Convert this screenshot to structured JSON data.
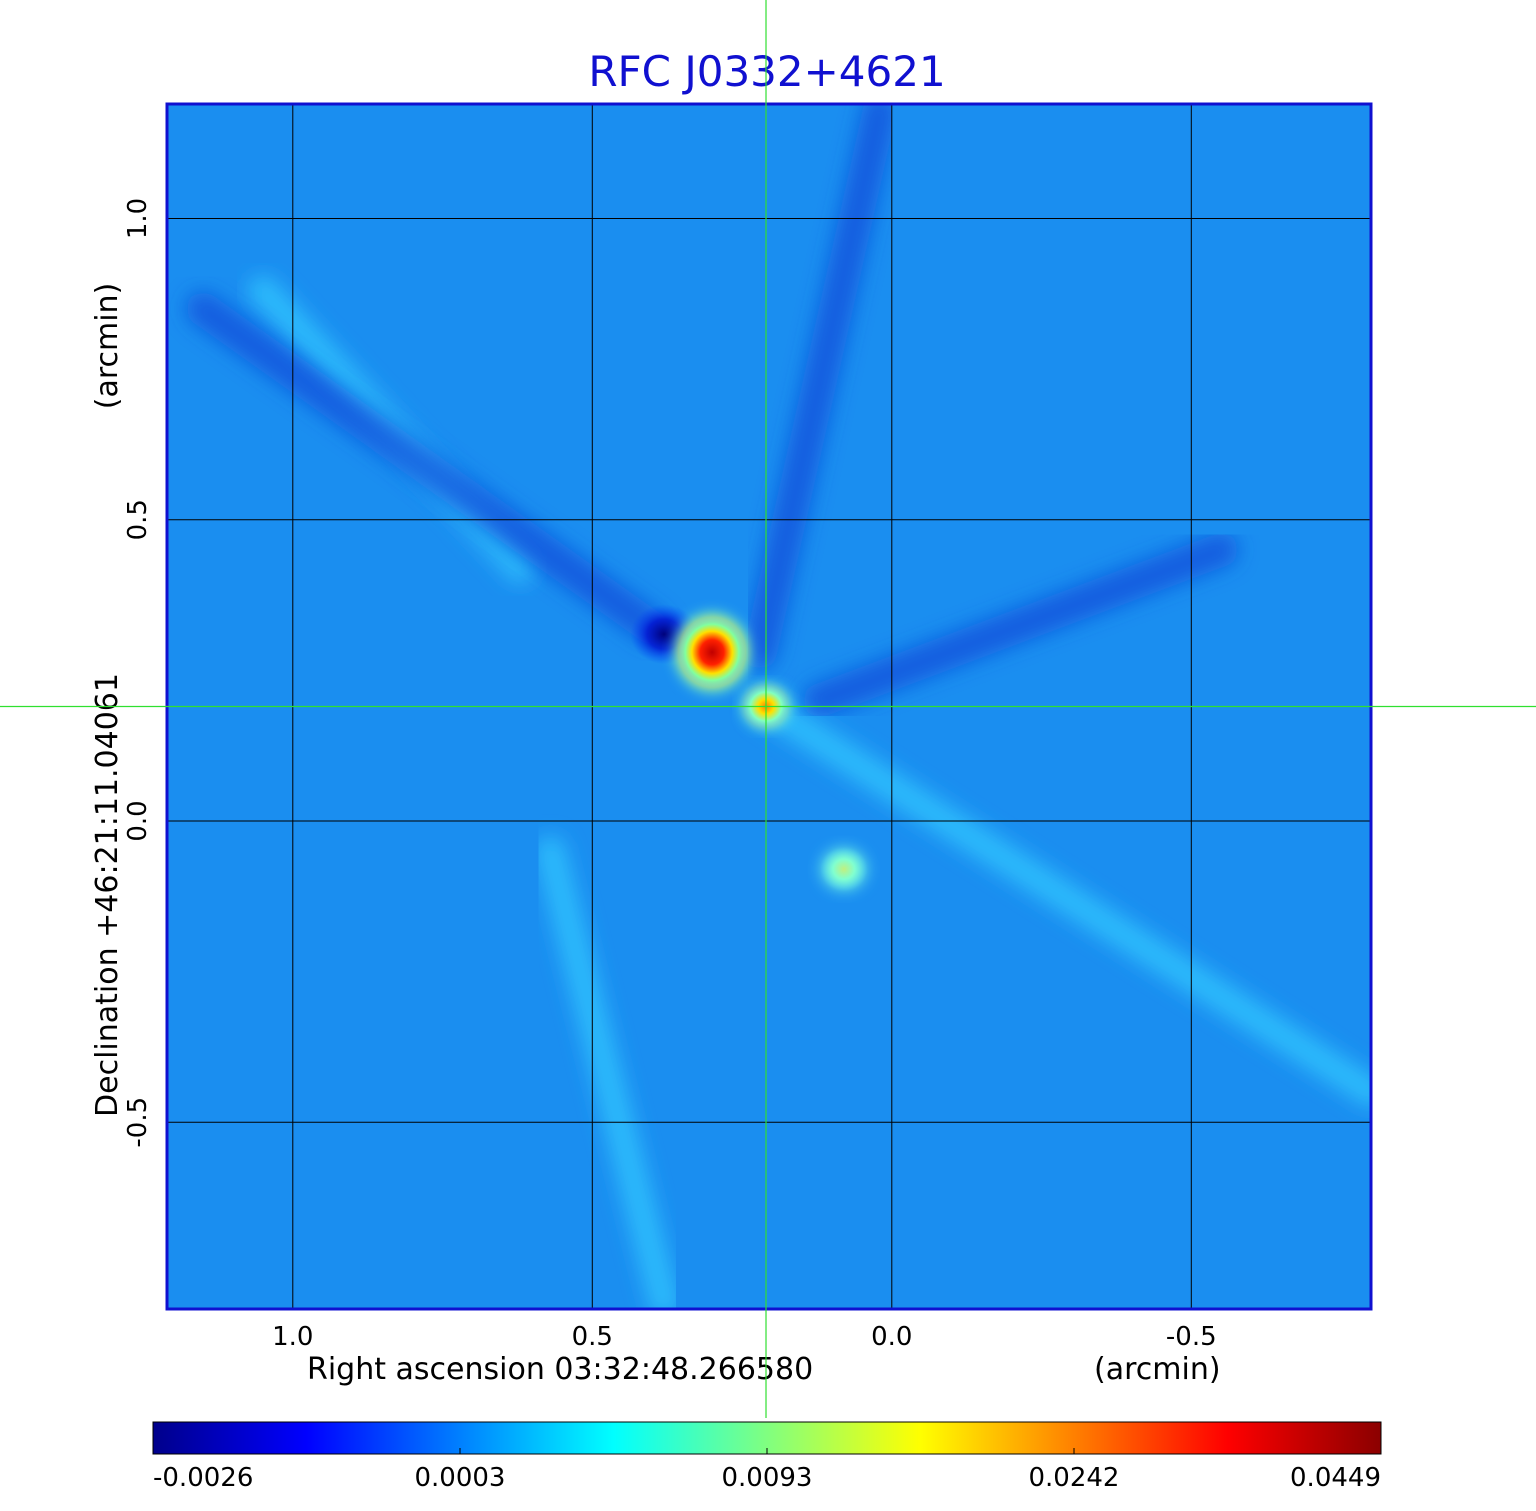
{
  "chart_data": {
    "type": "heatmap",
    "title": "RFC J0332+4621",
    "xlabel": "Right ascension  03:32:48.266580",
    "xunit": "(arcmin)",
    "ylabel": "Declination  +46:21:11.04061",
    "yunit": "(arcmin)",
    "xlim": [
      1.21,
      -0.8
    ],
    "ylim": [
      -0.81,
      1.19
    ],
    "x_direction": "decreasing to the right",
    "x_ticks": [
      1.0,
      0.5,
      0.0,
      -0.5
    ],
    "x_tick_labels": [
      "1.0",
      "0.5",
      "0.0",
      "-0.5"
    ],
    "y_ticks": [
      1.0,
      0.5,
      0.0,
      -0.5
    ],
    "y_tick_labels": [
      "1.0",
      "0.5",
      "0.0",
      "-0.5"
    ],
    "grid": true,
    "crosshair": {
      "x": 0.21,
      "y": 0.19
    },
    "colormap": "jet",
    "colorbar": {
      "position": "bottom",
      "tick_labels": [
        "-0.0026",
        "0.0003",
        "0.0093",
        "0.0242",
        "0.0449"
      ],
      "colors": [
        "#00008b",
        "#0000ff",
        "#0080ff",
        "#00ffff",
        "#80ff80",
        "#ffff00",
        "#ff8000",
        "#ff0000",
        "#8b0000"
      ]
    },
    "background_level": 0.0003,
    "sources": [
      {
        "x": 0.3,
        "y": 0.28,
        "peak": 0.0449
      },
      {
        "x": 0.21,
        "y": 0.19,
        "peak": 0.0242
      },
      {
        "x": 0.08,
        "y": -0.08,
        "peak": 0.0093
      }
    ],
    "negative_regions": [
      {
        "x": 0.38,
        "y": 0.31,
        "value": -0.0026
      }
    ],
    "artifacts": [
      {
        "kind": "positive_streak",
        "from": [
          0.21,
          0.19
        ],
        "to": [
          -0.8,
          -0.45
        ]
      },
      {
        "kind": "positive_streak",
        "from": [
          1.05,
          0.88
        ],
        "to": [
          0.62,
          0.42
        ]
      },
      {
        "kind": "positive_streak",
        "from": [
          0.57,
          -0.05
        ],
        "to": [
          0.38,
          -0.8
        ]
      },
      {
        "kind": "negative_streak",
        "from": [
          0.4,
          0.32
        ],
        "to": [
          1.15,
          0.85
        ]
      },
      {
        "kind": "negative_streak",
        "from": [
          0.22,
          0.28
        ],
        "to": [
          0.02,
          1.18
        ]
      },
      {
        "kind": "negative_streak",
        "from": [
          0.12,
          0.2
        ],
        "to": [
          -0.55,
          0.45
        ]
      }
    ]
  }
}
